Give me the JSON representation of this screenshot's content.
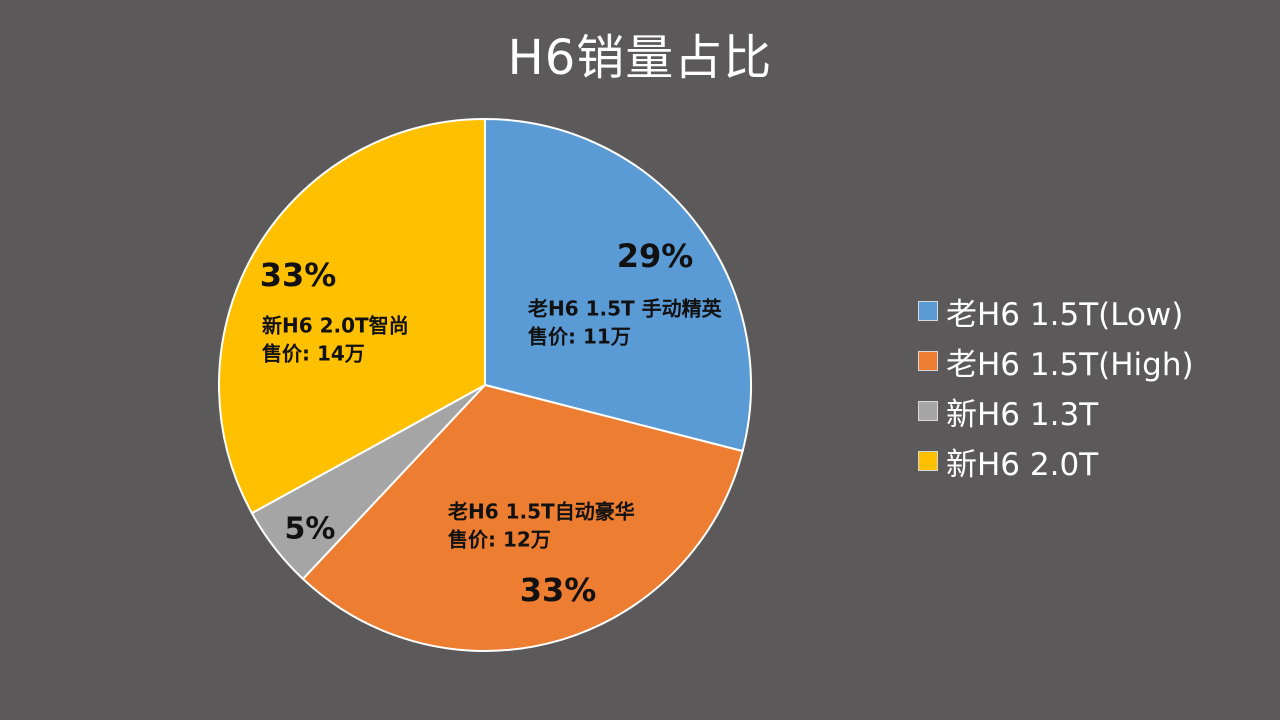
{
  "chart_data": {
    "type": "pie",
    "title": "H6销量占比",
    "categories": [
      "老H6 1.5T(Low)",
      "老H6 1.5T(High)",
      "新H6 1.3T",
      "新H6 2.0T"
    ],
    "values": [
      29,
      33,
      5,
      33
    ],
    "percent_labels": [
      "29%",
      "33%",
      "5%",
      "33%"
    ],
    "annotations": [
      [
        "老H6 1.5T 手动精英",
        "售价: 11万"
      ],
      [
        "老H6 1.5T自动豪华",
        "售价: 12万"
      ],
      [],
      [
        "新H6 2.0T智尚",
        "售价: 14万"
      ]
    ],
    "colors": [
      "#5b9bd5",
      "#ed7d31",
      "#a5a5a5",
      "#ffc000"
    ],
    "slice_border_color": "#ffffff",
    "start_angle": "top",
    "direction": "clockwise",
    "legend_position": "right"
  }
}
